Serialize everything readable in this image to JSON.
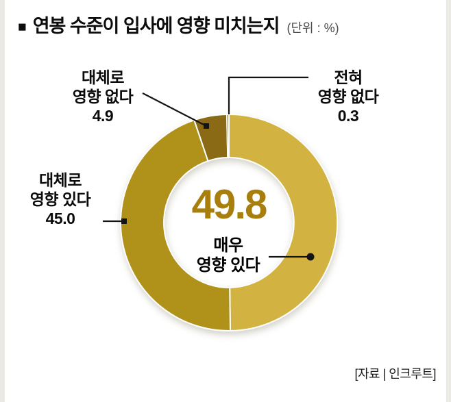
{
  "title": {
    "bullet": "■",
    "text": "연봉 수준이 입사에 영향 미치는지",
    "unit": "(단위 : %)"
  },
  "source": "[자료 | 인크루트]",
  "chart_data": {
    "type": "pie",
    "subtype": "donut",
    "title": "연봉 수준이 입사에 영향 미치는지",
    "unit": "%",
    "categories": [
      "매우 영향 있다",
      "대체로 영향 있다",
      "대체로 영향 없다",
      "전혀 영향 없다"
    ],
    "values": [
      49.8,
      45.0,
      4.9,
      0.3
    ],
    "colors": [
      "#d2b341",
      "#b0921a",
      "#8a6a14",
      "#53400e"
    ],
    "start_angle_deg": 0,
    "clockwise": true,
    "inner_radius_ratio": 0.6,
    "legend_position": "callout-labels",
    "center_highlight": {
      "value": 49.8,
      "label": "매우 영향 있다",
      "color": "#a87f0c"
    }
  },
  "labels": {
    "center_value": "49.8",
    "center_name": [
      "매우",
      "영향 있다"
    ],
    "left": {
      "lines": [
        "대체로",
        "영향 있다"
      ],
      "value": "45.0"
    },
    "top_left": {
      "lines": [
        "대체로",
        "영향 없다"
      ],
      "value": "4.9"
    },
    "top_right": {
      "lines": [
        "전혀",
        "영향 없다"
      ],
      "value": "0.3"
    }
  }
}
